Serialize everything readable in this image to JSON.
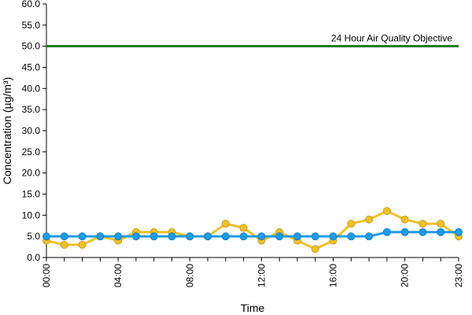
{
  "chart_data": {
    "type": "line",
    "xlabel": "Time",
    "ylabel": "Concentration (µg/m³)",
    "ylim": [
      0,
      60
    ],
    "yticks": [
      "0.0",
      "5.0",
      "10.0",
      "15.0",
      "20.0",
      "25.0",
      "30.0",
      "35.0",
      "40.0",
      "45.0",
      "50.0",
      "55.0",
      "60.0"
    ],
    "xticks": [
      "00:00",
      "04:00",
      "08:00",
      "12:00",
      "16:00",
      "20:00",
      "23:00"
    ],
    "x": [
      "00:00",
      "01:00",
      "02:00",
      "03:00",
      "04:00",
      "05:00",
      "06:00",
      "07:00",
      "08:00",
      "09:00",
      "10:00",
      "11:00",
      "12:00",
      "13:00",
      "14:00",
      "15:00",
      "16:00",
      "17:00",
      "18:00",
      "19:00",
      "20:00",
      "21:00",
      "22:00",
      "23:00"
    ],
    "grid": false,
    "legend": "none",
    "series": [
      {
        "color": "#f0c02a",
        "values": [
          4,
          3,
          3,
          5,
          4,
          6,
          6,
          6,
          5,
          5,
          8,
          7,
          4,
          6,
          4,
          2,
          4,
          8,
          9,
          11,
          9,
          8,
          8,
          5
        ]
      },
      {
        "color": "#1e9be6",
        "values": [
          5,
          5,
          5,
          5,
          5,
          5,
          5,
          5,
          5,
          5,
          5,
          5,
          5,
          5,
          5,
          5,
          5,
          5,
          5,
          6,
          6,
          6,
          6,
          6
        ]
      }
    ],
    "reference_line": {
      "value": 50,
      "label": "24 Hour Air Quality Objective",
      "color": "#1a7a1a"
    }
  }
}
